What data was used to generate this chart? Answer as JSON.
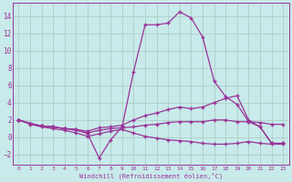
{
  "xlabel": "Windchill (Refroidissement éolien,°C)",
  "xlim": [
    -0.5,
    23.5
  ],
  "ylim": [
    -3.2,
    15.5
  ],
  "yticks": [
    -2,
    0,
    2,
    4,
    6,
    8,
    10,
    12,
    14
  ],
  "xticks": [
    0,
    1,
    2,
    3,
    4,
    5,
    6,
    7,
    8,
    9,
    10,
    11,
    12,
    13,
    14,
    15,
    16,
    17,
    18,
    19,
    20,
    21,
    22,
    23
  ],
  "bg_color": "#c8eaea",
  "grid_color": "#a8c8c0",
  "line_color": "#993399",
  "line1_x": [
    0,
    1,
    2,
    3,
    4,
    5,
    6,
    7,
    8,
    9,
    10,
    11,
    12,
    13,
    14,
    15,
    16,
    17,
    18,
    19,
    20,
    21,
    22,
    23
  ],
  "line1_y": [
    2.0,
    1.6,
    1.3,
    1.2,
    1.0,
    0.9,
    0.4,
    -2.4,
    -0.3,
    1.2,
    7.6,
    13.0,
    13.0,
    13.2,
    14.5,
    13.8,
    11.6,
    6.5,
    4.7,
    3.8,
    1.8,
    1.2,
    -0.7,
    -0.7
  ],
  "line2_x": [
    0,
    1,
    2,
    3,
    4,
    5,
    6,
    7,
    8,
    9,
    10,
    11,
    12,
    13,
    14,
    15,
    16,
    17,
    18,
    19,
    20,
    21,
    22,
    23
  ],
  "line2_y": [
    2.0,
    1.6,
    1.3,
    1.2,
    1.0,
    0.9,
    0.7,
    1.1,
    1.2,
    1.4,
    2.0,
    2.5,
    2.8,
    3.2,
    3.5,
    3.3,
    3.5,
    4.0,
    4.5,
    4.8,
    2.0,
    1.2,
    -0.7,
    -0.7
  ],
  "line3_x": [
    0,
    1,
    2,
    3,
    4,
    5,
    6,
    7,
    8,
    9,
    10,
    11,
    12,
    13,
    14,
    15,
    16,
    17,
    18,
    19,
    20,
    21,
    22,
    23
  ],
  "line3_y": [
    2.0,
    1.6,
    1.3,
    1.2,
    1.0,
    0.8,
    0.5,
    0.8,
    1.0,
    1.1,
    1.2,
    1.4,
    1.5,
    1.7,
    1.8,
    1.8,
    1.8,
    2.0,
    2.0,
    1.8,
    1.8,
    1.7,
    1.5,
    1.5
  ],
  "line4_x": [
    0,
    1,
    2,
    3,
    4,
    5,
    6,
    7,
    8,
    9,
    10,
    11,
    12,
    13,
    14,
    15,
    16,
    17,
    18,
    19,
    20,
    21,
    22,
    23
  ],
  "line4_y": [
    2.0,
    1.5,
    1.2,
    1.0,
    0.8,
    0.5,
    0.1,
    0.4,
    0.7,
    0.9,
    0.5,
    0.1,
    -0.1,
    -0.3,
    -0.4,
    -0.5,
    -0.7,
    -0.8,
    -0.8,
    -0.7,
    -0.5,
    -0.7,
    -0.8,
    -0.8
  ]
}
